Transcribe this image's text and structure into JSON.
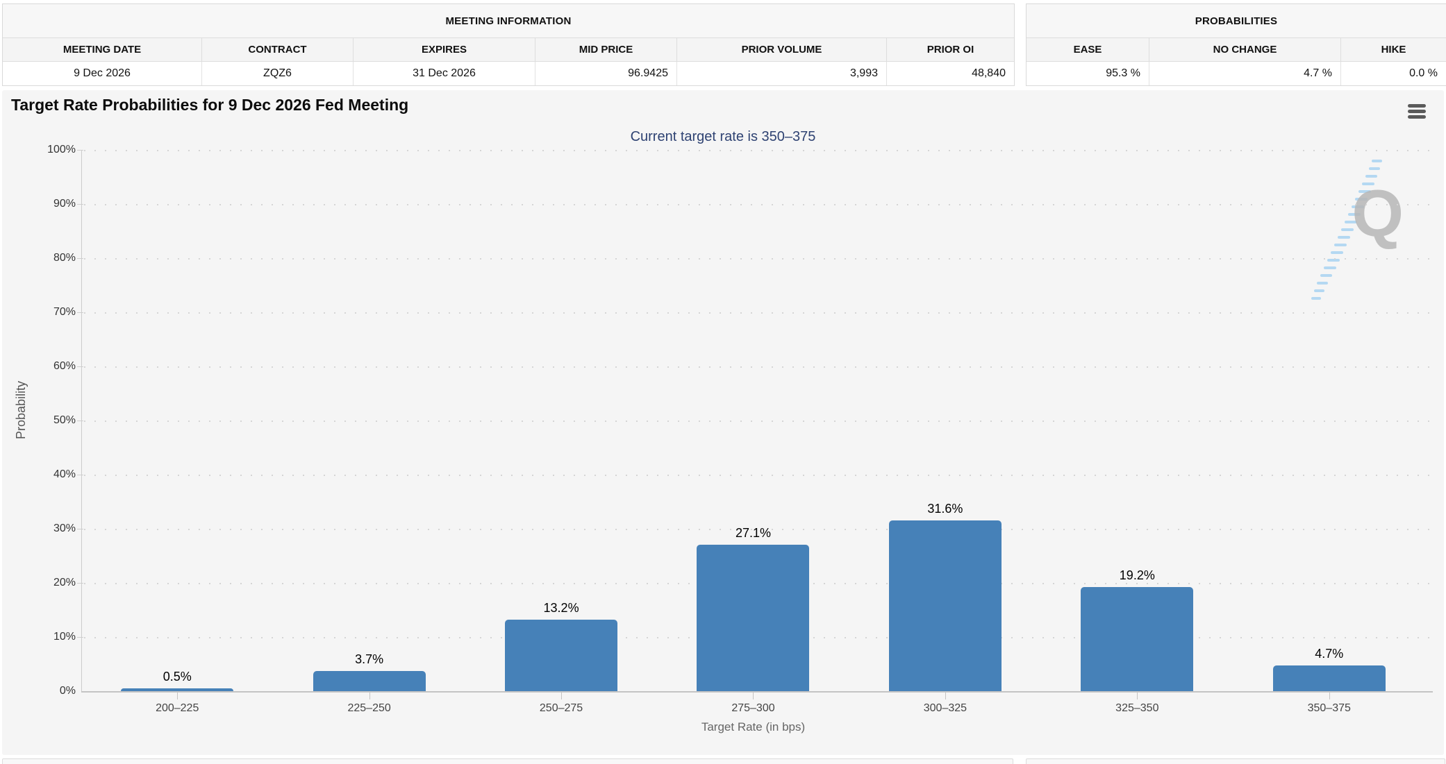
{
  "meeting_information": {
    "title": "MEETING INFORMATION",
    "columns": [
      "MEETING DATE",
      "CONTRACT",
      "EXPIRES",
      "MID PRICE",
      "PRIOR VOLUME",
      "PRIOR OI"
    ],
    "values": [
      "9 Dec 2026",
      "ZQZ6",
      "31 Dec 2026",
      "96.9425",
      "3,993",
      "48,840"
    ]
  },
  "probabilities": {
    "title": "PROBABILITIES",
    "columns": [
      "EASE",
      "NO CHANGE",
      "HIKE"
    ],
    "values": [
      "95.3 %",
      "4.7 %",
      "0.0 %"
    ]
  },
  "chart": {
    "title": "Target Rate Probabilities for 9 Dec 2026 Fed Meeting",
    "subtitle": "Current target rate is 350–375",
    "menu_icon": "hamburger-icon",
    "watermark_letter": "Q",
    "bar_color": "#4681b8",
    "subtitle_color": "#2e4272",
    "panel_background": "#f5f5f5"
  },
  "chart_data": {
    "type": "bar",
    "title": "Target Rate Probabilities for 9 Dec 2026 Fed Meeting",
    "subtitle": "Current target rate is 350–375",
    "categories": [
      "200–225",
      "225–250",
      "250–275",
      "275–300",
      "300–325",
      "325–350",
      "350–375"
    ],
    "values": [
      0.5,
      3.7,
      13.2,
      27.1,
      31.6,
      19.2,
      4.7
    ],
    "labels": [
      "0.5%",
      "3.7%",
      "13.2%",
      "27.1%",
      "31.6%",
      "19.2%",
      "4.7%"
    ],
    "xlabel": "Target Rate (in bps)",
    "ylabel": "Probability",
    "ylim": [
      0,
      100
    ],
    "yticks": [
      "100%",
      "90%",
      "80%",
      "70%",
      "60%",
      "50%",
      "40%",
      "30%",
      "20%",
      "10%",
      "0%"
    ],
    "grid": "horizontal-dotted",
    "legend": "none"
  }
}
